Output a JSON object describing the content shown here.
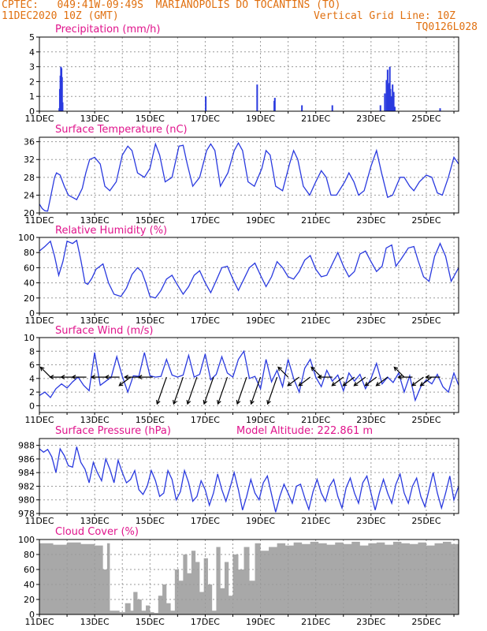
{
  "header": {
    "left1": "CPTEC:   049:41W-09:49S  MARIANOPOLIS DO TOCANTINS (TO)",
    "left2": "11DEC2020 10Z (GMT)",
    "right2": "Vertical Grid Line: 10Z",
    "right3": "TQ0126L028"
  },
  "colors": {
    "header": "#e07010",
    "title": "#e0148c",
    "line": "#2a3adf",
    "cloud": "#a8a8a8",
    "grid": "#9a9a9a",
    "arrow": "#000000"
  },
  "x_axis": {
    "labels": [
      "11DEC",
      "13DEC",
      "15DEC",
      "17DEC",
      "19DEC",
      "21DEC",
      "23DEC",
      "25DEC"
    ],
    "label_days": [
      0,
      2,
      4,
      6,
      8,
      10,
      12,
      14
    ],
    "days_span": 15.17
  },
  "chart_data": [
    {
      "type": "bar",
      "title": "Precipitation (mm/h)",
      "ylim": [
        0,
        5
      ],
      "yticks": [
        0,
        1,
        2,
        3,
        4,
        5
      ],
      "x": [
        0.72,
        0.74,
        0.76,
        0.78,
        0.8,
        0.82,
        0.84,
        6.02,
        7.88,
        8.5,
        8.52,
        9.5,
        10.6,
        12.34,
        12.5,
        12.56,
        12.6,
        12.62,
        12.64,
        12.66,
        12.68,
        12.7,
        12.74,
        12.78,
        12.82,
        12.86,
        14.5
      ],
      "values": [
        0.2,
        1.5,
        2.4,
        3.0,
        2.9,
        2.3,
        0.6,
        1.0,
        1.8,
        0.7,
        0.9,
        0.4,
        0.4,
        0.4,
        1.2,
        2.1,
        2.8,
        1.8,
        0.7,
        1.9,
        3.0,
        1.5,
        1.0,
        1.8,
        1.3,
        0.3,
        0.2
      ]
    },
    {
      "type": "line",
      "title": "Surface Temperature (nC)",
      "ylim": [
        20,
        37
      ],
      "yticks": [
        20,
        24,
        28,
        32,
        36
      ],
      "x": [
        0,
        0.1,
        0.2,
        0.3,
        0.42,
        0.55,
        0.62,
        0.75,
        0.9,
        1.05,
        1.35,
        1.55,
        1.68,
        1.82,
        2.0,
        2.2,
        2.37,
        2.55,
        2.78,
        3.0,
        3.2,
        3.35,
        3.55,
        3.8,
        4.0,
        4.2,
        4.35,
        4.55,
        4.8,
        5.05,
        5.2,
        5.35,
        5.55,
        5.8,
        6.05,
        6.2,
        6.35,
        6.55,
        6.82,
        7.05,
        7.2,
        7.35,
        7.55,
        7.78,
        8.05,
        8.2,
        8.35,
        8.55,
        8.8,
        9.05,
        9.2,
        9.35,
        9.55,
        9.78,
        10.0,
        10.2,
        10.38,
        10.55,
        10.75,
        11.05,
        11.2,
        11.38,
        11.55,
        11.75,
        12.0,
        12.2,
        12.38,
        12.6,
        12.78,
        13.05,
        13.2,
        13.4,
        13.55,
        13.75,
        14.0,
        14.2,
        14.4,
        14.58,
        14.8,
        15.0,
        15.17
      ],
      "values": [
        22,
        21,
        20.5,
        20.4,
        24,
        28,
        29,
        28.5,
        26,
        24,
        23,
        25.5,
        29,
        32,
        32.5,
        31,
        26,
        25,
        27,
        33,
        35,
        34,
        29,
        28,
        30,
        35.5,
        33,
        27,
        28,
        35,
        35.2,
        31,
        26,
        28,
        34,
        35.5,
        34,
        26,
        29,
        34,
        35.7,
        34,
        27,
        26,
        30,
        34,
        33,
        26,
        25,
        31,
        34,
        32,
        26,
        24,
        27,
        29.5,
        28,
        24,
        24,
        27,
        29,
        27,
        24,
        25,
        30.5,
        34,
        29,
        23.5,
        24,
        28,
        28,
        26,
        25,
        27,
        28.5,
        28,
        24.5,
        24,
        28,
        32.5,
        31
      ]
    },
    {
      "type": "line",
      "title": "Relative Humidity (%)",
      "ylim": [
        0,
        100
      ],
      "yticks": [
        0,
        20,
        40,
        60,
        80,
        100
      ],
      "x": [
        0,
        0.2,
        0.4,
        0.55,
        0.7,
        0.85,
        1.0,
        1.2,
        1.35,
        1.5,
        1.65,
        1.75,
        1.9,
        2.05,
        2.3,
        2.5,
        2.7,
        2.95,
        3.15,
        3.35,
        3.55,
        3.7,
        3.85,
        4.0,
        4.2,
        4.4,
        4.6,
        4.8,
        4.95,
        5.2,
        5.4,
        5.6,
        5.8,
        6.0,
        6.2,
        6.4,
        6.6,
        6.8,
        7.0,
        7.2,
        7.4,
        7.6,
        7.8,
        8.0,
        8.2,
        8.4,
        8.6,
        8.8,
        9.0,
        9.2,
        9.4,
        9.6,
        9.8,
        10.0,
        10.2,
        10.4,
        10.6,
        10.8,
        11.0,
        11.2,
        11.4,
        11.6,
        11.8,
        12.0,
        12.2,
        12.4,
        12.55,
        12.75,
        12.9,
        13.1,
        13.35,
        13.55,
        13.7,
        13.9,
        14.1,
        14.3,
        14.5,
        14.7,
        14.9,
        15.17
      ],
      "values": [
        82,
        88,
        95,
        75,
        50,
        68,
        95,
        92,
        96,
        70,
        40,
        38,
        46,
        58,
        65,
        40,
        25,
        22,
        33,
        51,
        60,
        55,
        40,
        22,
        20,
        30,
        45,
        50,
        40,
        25,
        35,
        50,
        56,
        40,
        27,
        43,
        60,
        62,
        45,
        30,
        45,
        60,
        66,
        50,
        35,
        48,
        68,
        60,
        48,
        45,
        55,
        70,
        76,
        58,
        48,
        50,
        65,
        80,
        62,
        48,
        55,
        78,
        82,
        68,
        55,
        62,
        86,
        90,
        62,
        72,
        86,
        88,
        70,
        48,
        42,
        75,
        92,
        75,
        42,
        60
      ]
    },
    {
      "type": "line",
      "title": "Surface Wind (m/s)",
      "ylim": [
        -1,
        10
      ],
      "yticks": [
        0,
        2,
        4,
        6,
        8,
        10
      ],
      "x": [
        0,
        0.2,
        0.4,
        0.6,
        0.8,
        1.0,
        1.2,
        1.4,
        1.6,
        1.8,
        2.0,
        2.2,
        2.4,
        2.6,
        2.8,
        3.0,
        3.2,
        3.4,
        3.6,
        3.8,
        4.0,
        4.2,
        4.4,
        4.6,
        4.8,
        5.0,
        5.2,
        5.4,
        5.6,
        5.8,
        6.0,
        6.2,
        6.4,
        6.6,
        6.8,
        7.0,
        7.2,
        7.4,
        7.6,
        7.8,
        8.0,
        8.2,
        8.4,
        8.6,
        8.8,
        9.0,
        9.2,
        9.4,
        9.6,
        9.8,
        10.0,
        10.2,
        10.4,
        10.6,
        10.8,
        11.0,
        11.2,
        11.4,
        11.6,
        11.8,
        12.0,
        12.2,
        12.4,
        12.6,
        12.8,
        13.0,
        13.2,
        13.4,
        13.6,
        13.8,
        14.0,
        14.2,
        14.4,
        14.6,
        14.8,
        15.0,
        15.17
      ],
      "values": [
        1.5,
        2.0,
        1.2,
        2.5,
        3.2,
        2.6,
        3.5,
        4.2,
        3.0,
        2.2,
        7.8,
        3.0,
        3.6,
        4.2,
        7.2,
        4.3,
        2.0,
        4.4,
        4.3,
        7.8,
        4.4,
        4.2,
        4.3,
        6.8,
        4.5,
        4.2,
        4.5,
        7.4,
        4.2,
        4.6,
        7.6,
        3.8,
        4.6,
        7.2,
        4.8,
        4.2,
        6.8,
        8.0,
        4.0,
        4.3,
        2.5,
        6.8,
        3.5,
        5.2,
        2.8,
        6.8,
        4.0,
        2.0,
        5.5,
        6.8,
        4.2,
        2.8,
        5.2,
        3.6,
        4.5,
        2.2,
        4.8,
        3.6,
        4.6,
        2.5,
        4.0,
        6.2,
        3.2,
        4.2,
        3.4,
        4.8,
        2.0,
        4.4,
        0.8,
        2.8,
        3.8,
        3.2,
        4.6,
        2.8,
        2.0,
        4.8,
        3.0
      ]
    },
    {
      "type": "line",
      "title": "Surface Pressure (hPa)",
      "ylim": [
        978,
        989
      ],
      "yticks": [
        978,
        980,
        982,
        984,
        986,
        988
      ],
      "x": [
        0,
        0.15,
        0.3,
        0.45,
        0.6,
        0.75,
        0.9,
        1.05,
        1.2,
        1.35,
        1.5,
        1.65,
        1.8,
        1.95,
        2.1,
        2.25,
        2.4,
        2.55,
        2.7,
        2.85,
        3.0,
        3.15,
        3.3,
        3.45,
        3.6,
        3.75,
        3.9,
        4.05,
        4.2,
        4.35,
        4.5,
        4.65,
        4.8,
        4.95,
        5.1,
        5.25,
        5.4,
        5.55,
        5.7,
        5.85,
        6.0,
        6.15,
        6.3,
        6.45,
        6.6,
        6.75,
        6.9,
        7.05,
        7.2,
        7.35,
        7.5,
        7.65,
        7.8,
        7.95,
        8.1,
        8.25,
        8.4,
        8.55,
        8.7,
        8.85,
        9.0,
        9.15,
        9.3,
        9.45,
        9.6,
        9.75,
        9.9,
        10.05,
        10.2,
        10.35,
        10.5,
        10.65,
        10.8,
        10.95,
        11.1,
        11.25,
        11.4,
        11.55,
        11.7,
        11.85,
        12.0,
        12.15,
        12.3,
        12.45,
        12.6,
        12.75,
        12.9,
        13.05,
        13.2,
        13.35,
        13.5,
        13.65,
        13.8,
        13.95,
        14.1,
        14.25,
        14.4,
        14.55,
        14.7,
        14.85,
        15.0,
        15.17
      ],
      "values": [
        987.5,
        987.0,
        987.4,
        986.3,
        984.0,
        987.5,
        986.5,
        985.0,
        984.8,
        987.8,
        985.5,
        984.5,
        982.5,
        985.5,
        984.0,
        982.8,
        986.0,
        984.5,
        982.5,
        985.8,
        984.0,
        982.5,
        983.0,
        984.3,
        981.5,
        980.8,
        982.0,
        984.3,
        982.8,
        980.5,
        981.0,
        984.3,
        983.0,
        980.0,
        981.2,
        984.3,
        982.5,
        979.8,
        980.5,
        982.8,
        981.5,
        979.2,
        981.0,
        983.8,
        981.5,
        979.8,
        981.8,
        984.0,
        981.5,
        978.5,
        980.5,
        983.0,
        981.0,
        980.0,
        982.5,
        983.5,
        980.8,
        978.2,
        980.5,
        982.3,
        981.0,
        979.5,
        982.0,
        982.3,
        980.3,
        978.6,
        981.2,
        983.0,
        981.0,
        979.8,
        982.0,
        983.0,
        980.5,
        978.8,
        981.8,
        983.2,
        981.0,
        979.5,
        982.5,
        983.5,
        981.0,
        978.5,
        981.0,
        983.0,
        981.0,
        979.5,
        982.3,
        983.8,
        981.0,
        979.5,
        982.0,
        983.2,
        980.5,
        979.0,
        981.5,
        984.0,
        981.0,
        978.8,
        981.0,
        983.5,
        980.0,
        982.0
      ]
    },
    {
      "type": "area",
      "title": "Cloud Cover (%)",
      "ylim": [
        0,
        100
      ],
      "yticks": [
        0,
        20,
        40,
        60,
        80,
        100
      ],
      "x": [
        0,
        0.5,
        1.0,
        1.5,
        2.0,
        2.3,
        2.45,
        2.55,
        2.9,
        3.1,
        3.3,
        3.4,
        3.55,
        3.7,
        3.85,
        4.0,
        4.15,
        4.3,
        4.45,
        4.6,
        4.75,
        4.9,
        5.05,
        5.2,
        5.35,
        5.5,
        5.65,
        5.8,
        5.95,
        6.1,
        6.25,
        6.4,
        6.55,
        6.7,
        6.85,
        7.0,
        7.2,
        7.4,
        7.6,
        7.8,
        8.0,
        8.3,
        8.6,
        8.9,
        9.2,
        9.5,
        9.8,
        10.1,
        10.4,
        10.7,
        11.0,
        11.3,
        11.6,
        11.9,
        12.2,
        12.5,
        12.8,
        13.1,
        13.4,
        13.7,
        14.0,
        14.3,
        14.6,
        14.9,
        15.17
      ],
      "values": [
        95,
        93,
        96,
        94,
        92,
        60,
        95,
        5,
        3,
        15,
        5,
        30,
        20,
        5,
        12,
        3,
        2,
        25,
        40,
        15,
        5,
        60,
        45,
        80,
        55,
        85,
        70,
        30,
        75,
        40,
        5,
        90,
        35,
        70,
        25,
        80,
        60,
        90,
        45,
        95,
        85,
        90,
        95,
        92,
        96,
        94,
        97,
        95,
        93,
        96,
        94,
        97,
        92,
        95,
        96,
        93,
        97,
        95,
        94,
        96,
        92,
        95,
        97,
        94,
        96
      ]
    }
  ],
  "model_altitude": "Model Altitude: 222.861  m",
  "wind_arrows": [
    {
      "day": 0.4,
      "dir": "nw"
    },
    {
      "day": 0.9,
      "dir": "w"
    },
    {
      "day": 1.3,
      "dir": "w"
    },
    {
      "day": 1.7,
      "dir": "w"
    },
    {
      "day": 2.4,
      "dir": "w"
    },
    {
      "day": 2.9,
      "dir": "w"
    },
    {
      "day": 3.3,
      "dir": "sw"
    },
    {
      "day": 3.6,
      "dir": "w"
    },
    {
      "day": 4.1,
      "dir": "w"
    },
    {
      "day": 4.6,
      "dir": "ssw"
    },
    {
      "day": 5.2,
      "dir": "ssw"
    },
    {
      "day": 5.7,
      "dir": "ssw"
    },
    {
      "day": 6.3,
      "dir": "ssw"
    },
    {
      "day": 6.8,
      "dir": "ssw"
    },
    {
      "day": 7.5,
      "dir": "ssw"
    },
    {
      "day": 8.0,
      "dir": "ssw"
    },
    {
      "day": 8.6,
      "dir": "ssw"
    },
    {
      "day": 9.0,
      "dir": "nw"
    },
    {
      "day": 9.4,
      "dir": "sw"
    },
    {
      "day": 9.8,
      "dir": "sw"
    },
    {
      "day": 10.2,
      "dir": "nw"
    },
    {
      "day": 10.6,
      "dir": "w"
    },
    {
      "day": 11.0,
      "dir": "sw"
    },
    {
      "day": 11.4,
      "dir": "sw"
    },
    {
      "day": 11.8,
      "dir": "sw"
    },
    {
      "day": 12.2,
      "dir": "sw"
    },
    {
      "day": 12.6,
      "dir": "sw"
    },
    {
      "day": 13.2,
      "dir": "nw"
    },
    {
      "day": 13.5,
      "dir": "w"
    },
    {
      "day": 13.9,
      "dir": "sw"
    },
    {
      "day": 14.2,
      "dir": "sw"
    },
    {
      "day": 14.5,
      "dir": "w"
    }
  ]
}
